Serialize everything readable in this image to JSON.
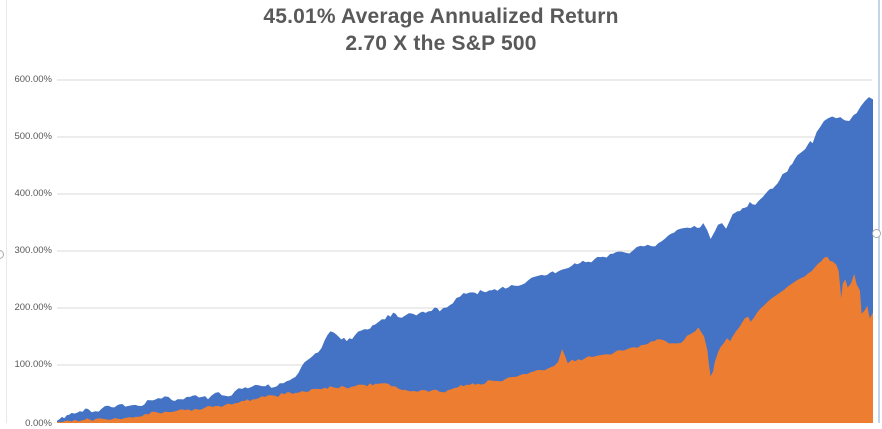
{
  "chart_data": {
    "type": "area",
    "title_line1": "45.01% Average Annualized Return",
    "title_line2": "2.70 X the S&P 500",
    "xlabel": "",
    "ylabel": "",
    "ylim": [
      0,
      600
    ],
    "y_ticks": [
      600,
      500,
      400,
      300,
      200,
      100,
      0
    ],
    "y_tick_labels": [
      "600.00%",
      "500.00%",
      "400.00%",
      "300.00%",
      "200.00%",
      "100.00%",
      "0.00%"
    ],
    "grid": true,
    "legend": "none",
    "x_axis_visible": false,
    "series": [
      {
        "name": "blue-area-series",
        "color": "#4472C4",
        "points": [
          [
            0.0,
            2
          ],
          [
            0.006,
            9
          ],
          [
            0.012,
            12
          ],
          [
            0.018,
            16
          ],
          [
            0.028,
            19
          ],
          [
            0.038,
            23
          ],
          [
            0.047,
            19
          ],
          [
            0.059,
            28
          ],
          [
            0.067,
            26
          ],
          [
            0.077,
            31
          ],
          [
            0.087,
            28
          ],
          [
            0.096,
            30
          ],
          [
            0.104,
            28
          ],
          [
            0.114,
            38
          ],
          [
            0.124,
            42
          ],
          [
            0.132,
            45
          ],
          [
            0.141,
            38
          ],
          [
            0.151,
            40
          ],
          [
            0.163,
            44
          ],
          [
            0.17,
            47
          ],
          [
            0.178,
            44
          ],
          [
            0.185,
            40
          ],
          [
            0.194,
            51
          ],
          [
            0.202,
            47
          ],
          [
            0.21,
            45
          ],
          [
            0.218,
            54
          ],
          [
            0.227,
            58
          ],
          [
            0.234,
            59
          ],
          [
            0.243,
            65
          ],
          [
            0.251,
            63
          ],
          [
            0.259,
            66
          ],
          [
            0.266,
            61
          ],
          [
            0.273,
            68
          ],
          [
            0.282,
            72
          ],
          [
            0.292,
            79
          ],
          [
            0.3,
            98
          ],
          [
            0.31,
            112
          ],
          [
            0.32,
            122
          ],
          [
            0.328,
            143
          ],
          [
            0.335,
            159
          ],
          [
            0.342,
            154
          ],
          [
            0.355,
            142
          ],
          [
            0.365,
            152
          ],
          [
            0.377,
            163
          ],
          [
            0.39,
            171
          ],
          [
            0.402,
            180
          ],
          [
            0.412,
            192
          ],
          [
            0.418,
            184
          ],
          [
            0.427,
            187
          ],
          [
            0.436,
            190
          ],
          [
            0.445,
            192
          ],
          [
            0.455,
            194
          ],
          [
            0.463,
            201
          ],
          [
            0.469,
            194
          ],
          [
            0.478,
            201
          ],
          [
            0.485,
            208
          ],
          [
            0.494,
            220
          ],
          [
            0.502,
            225
          ],
          [
            0.512,
            227
          ],
          [
            0.522,
            229
          ],
          [
            0.533,
            231
          ],
          [
            0.543,
            234
          ],
          [
            0.553,
            236
          ],
          [
            0.561,
            239
          ],
          [
            0.57,
            241
          ],
          [
            0.577,
            248
          ],
          [
            0.586,
            255
          ],
          [
            0.594,
            258
          ],
          [
            0.604,
            262
          ],
          [
            0.614,
            264
          ],
          [
            0.623,
            269
          ],
          [
            0.631,
            274
          ],
          [
            0.641,
            279
          ],
          [
            0.651,
            281
          ],
          [
            0.659,
            286
          ],
          [
            0.669,
            290
          ],
          [
            0.678,
            295
          ],
          [
            0.688,
            299
          ],
          [
            0.697,
            297
          ],
          [
            0.706,
            301
          ],
          [
            0.715,
            309
          ],
          [
            0.724,
            311
          ],
          [
            0.733,
            308
          ],
          [
            0.741,
            317
          ],
          [
            0.749,
            327
          ],
          [
            0.756,
            332
          ],
          [
            0.764,
            339
          ],
          [
            0.772,
            341
          ],
          [
            0.781,
            344
          ],
          [
            0.788,
            341
          ],
          [
            0.792,
            349
          ],
          [
            0.797,
            336
          ],
          [
            0.801,
            321
          ],
          [
            0.806,
            334
          ],
          [
            0.81,
            346
          ],
          [
            0.815,
            349
          ],
          [
            0.82,
            339
          ],
          [
            0.825,
            355
          ],
          [
            0.831,
            367
          ],
          [
            0.837,
            370
          ],
          [
            0.843,
            376
          ],
          [
            0.849,
            386
          ],
          [
            0.856,
            381
          ],
          [
            0.862,
            391
          ],
          [
            0.868,
            400
          ],
          [
            0.874,
            409
          ],
          [
            0.88,
            414
          ],
          [
            0.886,
            426
          ],
          [
            0.892,
            437
          ],
          [
            0.898,
            449
          ],
          [
            0.904,
            461
          ],
          [
            0.911,
            472
          ],
          [
            0.917,
            479
          ],
          [
            0.923,
            493
          ],
          [
            0.926,
            489
          ],
          [
            0.931,
            509
          ],
          [
            0.935,
            517
          ],
          [
            0.94,
            528
          ],
          [
            0.945,
            533
          ],
          [
            0.95,
            536
          ],
          [
            0.955,
            533
          ],
          [
            0.96,
            535
          ],
          [
            0.966,
            529
          ],
          [
            0.971,
            528
          ],
          [
            0.976,
            538
          ],
          [
            0.98,
            542
          ],
          [
            0.985,
            554
          ],
          [
            0.99,
            563
          ],
          [
            0.995,
            570
          ],
          [
            1.0,
            566
          ]
        ]
      },
      {
        "name": "orange-area-series",
        "color": "#ED7D31",
        "points": [
          [
            0.0,
            0
          ],
          [
            0.01,
            2
          ],
          [
            0.022,
            4
          ],
          [
            0.034,
            4
          ],
          [
            0.047,
            5
          ],
          [
            0.059,
            5
          ],
          [
            0.071,
            7
          ],
          [
            0.083,
            7
          ],
          [
            0.096,
            9
          ],
          [
            0.108,
            14
          ],
          [
            0.12,
            18
          ],
          [
            0.132,
            18
          ],
          [
            0.145,
            19
          ],
          [
            0.157,
            21
          ],
          [
            0.169,
            23
          ],
          [
            0.181,
            25
          ],
          [
            0.194,
            28
          ],
          [
            0.206,
            30
          ],
          [
            0.218,
            33
          ],
          [
            0.23,
            37
          ],
          [
            0.243,
            40
          ],
          [
            0.255,
            44
          ],
          [
            0.267,
            46
          ],
          [
            0.279,
            49
          ],
          [
            0.292,
            51
          ],
          [
            0.304,
            53
          ],
          [
            0.316,
            58
          ],
          [
            0.328,
            60
          ],
          [
            0.341,
            60
          ],
          [
            0.353,
            61
          ],
          [
            0.365,
            63
          ],
          [
            0.377,
            65
          ],
          [
            0.39,
            67
          ],
          [
            0.402,
            68
          ],
          [
            0.414,
            63
          ],
          [
            0.423,
            56
          ],
          [
            0.433,
            54
          ],
          [
            0.442,
            53
          ],
          [
            0.451,
            56
          ],
          [
            0.46,
            56
          ],
          [
            0.469,
            53
          ],
          [
            0.479,
            56
          ],
          [
            0.488,
            60
          ],
          [
            0.498,
            63
          ],
          [
            0.506,
            65
          ],
          [
            0.516,
            67
          ],
          [
            0.525,
            68
          ],
          [
            0.531,
            73
          ],
          [
            0.539,
            72
          ],
          [
            0.549,
            75
          ],
          [
            0.558,
            79
          ],
          [
            0.567,
            82
          ],
          [
            0.576,
            84
          ],
          [
            0.585,
            89
          ],
          [
            0.593,
            91
          ],
          [
            0.602,
            94
          ],
          [
            0.609,
            98
          ],
          [
            0.614,
            105
          ],
          [
            0.619,
            128
          ],
          [
            0.623,
            114
          ],
          [
            0.626,
            103
          ],
          [
            0.631,
            109
          ],
          [
            0.639,
            110
          ],
          [
            0.647,
            112
          ],
          [
            0.656,
            114
          ],
          [
            0.665,
            117
          ],
          [
            0.674,
            119
          ],
          [
            0.683,
            122
          ],
          [
            0.69,
            126
          ],
          [
            0.699,
            128
          ],
          [
            0.707,
            131
          ],
          [
            0.716,
            135
          ],
          [
            0.724,
            137
          ],
          [
            0.732,
            142
          ],
          [
            0.739,
            145
          ],
          [
            0.746,
            142
          ],
          [
            0.754,
            138
          ],
          [
            0.761,
            138
          ],
          [
            0.768,
            143
          ],
          [
            0.776,
            154
          ],
          [
            0.782,
            159
          ],
          [
            0.786,
            166
          ],
          [
            0.789,
            159
          ],
          [
            0.793,
            150
          ],
          [
            0.797,
            126
          ],
          [
            0.799,
            100
          ],
          [
            0.801,
            80
          ],
          [
            0.804,
            89
          ],
          [
            0.806,
            105
          ],
          [
            0.81,
            122
          ],
          [
            0.813,
            131
          ],
          [
            0.817,
            138
          ],
          [
            0.821,
            147
          ],
          [
            0.825,
            142
          ],
          [
            0.828,
            150
          ],
          [
            0.832,
            159
          ],
          [
            0.836,
            166
          ],
          [
            0.839,
            173
          ],
          [
            0.843,
            182
          ],
          [
            0.847,
            185
          ],
          [
            0.85,
            176
          ],
          [
            0.854,
            183
          ],
          [
            0.858,
            192
          ],
          [
            0.862,
            199
          ],
          [
            0.866,
            204
          ],
          [
            0.871,
            211
          ],
          [
            0.876,
            217
          ],
          [
            0.881,
            222
          ],
          [
            0.886,
            227
          ],
          [
            0.891,
            232
          ],
          [
            0.896,
            238
          ],
          [
            0.901,
            243
          ],
          [
            0.906,
            248
          ],
          [
            0.911,
            252
          ],
          [
            0.916,
            255
          ],
          [
            0.92,
            260
          ],
          [
            0.925,
            265
          ],
          [
            0.929,
            272
          ],
          [
            0.933,
            278
          ],
          [
            0.936,
            281
          ],
          [
            0.94,
            288
          ],
          [
            0.944,
            290
          ],
          [
            0.947,
            283
          ],
          [
            0.951,
            281
          ],
          [
            0.955,
            276
          ],
          [
            0.958,
            265
          ],
          [
            0.961,
            217
          ],
          [
            0.963,
            243
          ],
          [
            0.966,
            250
          ],
          [
            0.969,
            236
          ],
          [
            0.973,
            243
          ],
          [
            0.977,
            260
          ],
          [
            0.98,
            241
          ],
          [
            0.984,
            231
          ],
          [
            0.986,
            190
          ],
          [
            0.99,
            196
          ],
          [
            0.993,
            204
          ],
          [
            0.996,
            182
          ],
          [
            1.0,
            192
          ]
        ]
      }
    ]
  },
  "frame": {
    "gridline_color": "#d9d9d9",
    "title_color": "#595959",
    "axis_label_color": "#595959",
    "left_border_color": "#e9e9e9",
    "right_border_color": "#c3d4ea",
    "handle_border_color": "#ababab"
  }
}
